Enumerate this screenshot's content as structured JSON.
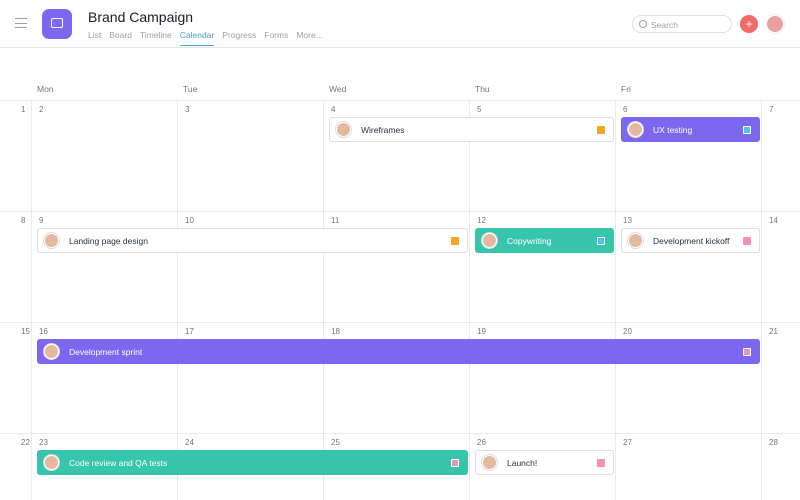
{
  "header": {
    "title": "Brand Campaign",
    "tabs": [
      "List",
      "Board",
      "Timeline",
      "Calendar",
      "Progress",
      "Forms",
      "More..."
    ],
    "active_tab": "Calendar",
    "search_placeholder": "Search",
    "add_label": "+"
  },
  "days": [
    "Mon",
    "Tue",
    "Wed",
    "Thu",
    "Fri"
  ],
  "weeks": [
    {
      "dates": [
        "1",
        "2",
        "3",
        "4",
        "5",
        "6",
        "7"
      ]
    },
    {
      "dates": [
        "8",
        "9",
        "10",
        "11",
        "12",
        "13",
        "14"
      ]
    },
    {
      "dates": [
        "15",
        "16",
        "17",
        "18",
        "19",
        "20",
        "21"
      ]
    },
    {
      "dates": [
        "22",
        "23",
        "24",
        "25",
        "26",
        "27",
        "28"
      ]
    }
  ],
  "events": [
    {
      "title": "Wireframes",
      "week": 0,
      "start": 2,
      "span": 2,
      "style": "white",
      "tag_color": "#f5a623"
    },
    {
      "title": "UX testing",
      "week": 0,
      "start": 4,
      "span": 1,
      "style": "purple",
      "tag_color": "#4fc3f7"
    },
    {
      "title": "Landing page design",
      "week": 1,
      "start": 0,
      "span": 3,
      "style": "white",
      "tag_color": "#f5a623"
    },
    {
      "title": "Copywriting",
      "week": 1,
      "start": 3,
      "span": 1,
      "style": "teal",
      "tag_color": "#4fc3f7"
    },
    {
      "title": "Development kickoff",
      "week": 1,
      "start": 4,
      "span": 1,
      "style": "white",
      "tag_color": "#f092b0"
    },
    {
      "title": "Development sprint",
      "week": 2,
      "start": 0,
      "span": 5,
      "style": "purple",
      "tag_color": "#f092b0"
    },
    {
      "title": "Code review and QA tests",
      "week": 3,
      "start": 0,
      "span": 3,
      "style": "teal",
      "tag_color": "#f092b0"
    },
    {
      "title": "Launch!",
      "week": 3,
      "start": 3,
      "span": 1,
      "style": "white",
      "tag_color": "#f092b0"
    }
  ],
  "colors": {
    "accent": "#7b68ee",
    "teal": "#37c5ab",
    "active_tab": "#4b9fd5",
    "add_button": "#f06a6a"
  }
}
